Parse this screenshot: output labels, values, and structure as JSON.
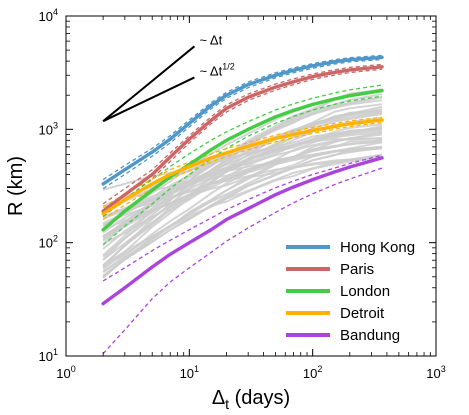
{
  "chart_data": {
    "type": "line",
    "title": "",
    "xlabel": "Δ",
    "xlabel_sub": "t",
    "xlabel_tail": " (days)",
    "ylabel": "R (km)",
    "xscale": "log",
    "yscale": "log",
    "xlim": [
      1,
      1000
    ],
    "ylim": [
      10,
      10000
    ],
    "legend_placement": "bottom-right",
    "grid": false,
    "x_ticks": [
      {
        "base": "10",
        "exp": "0"
      },
      {
        "base": "10",
        "exp": "1"
      },
      {
        "base": "10",
        "exp": "2"
      },
      {
        "base": "10",
        "exp": "3"
      }
    ],
    "y_ticks": [
      {
        "base": "10",
        "exp": "1"
      },
      {
        "base": "10",
        "exp": "2"
      },
      {
        "base": "10",
        "exp": "3"
      },
      {
        "base": "10",
        "exp": "4"
      }
    ],
    "x": [
      2,
      3,
      5,
      7,
      10,
      15,
      20,
      30,
      50,
      70,
      100,
      150,
      200,
      365
    ],
    "series": [
      {
        "name": "Hong Kong",
        "color": "#4f97c9",
        "values": [
          330,
          440,
          630,
          820,
          1130,
          1620,
          2000,
          2480,
          3000,
          3320,
          3640,
          3940,
          4120,
          4310
        ],
        "band_lower": [
          300,
          400,
          580,
          760,
          1050,
          1520,
          1880,
          2330,
          2850,
          3160,
          3460,
          3760,
          3940,
          4130
        ],
        "band_upper": [
          360,
          480,
          680,
          880,
          1210,
          1720,
          2120,
          2620,
          3160,
          3480,
          3800,
          4110,
          4290,
          4490
        ]
      },
      {
        "name": "Paris",
        "color": "#cc6666",
        "values": [
          190,
          265,
          400,
          570,
          820,
          1200,
          1530,
          1920,
          2360,
          2630,
          2920,
          3180,
          3340,
          3560
        ],
        "band_lower": [
          170,
          240,
          370,
          520,
          760,
          1120,
          1420,
          1800,
          2220,
          2480,
          2760,
          3010,
          3170,
          3390
        ],
        "band_upper": [
          220,
          300,
          440,
          620,
          880,
          1290,
          1640,
          2050,
          2510,
          2790,
          3080,
          3350,
          3520,
          3740
        ]
      },
      {
        "name": "London",
        "color": "#44cc44",
        "values": [
          130,
          190,
          290,
          380,
          490,
          660,
          800,
          1000,
          1290,
          1470,
          1660,
          1850,
          1980,
          2200
        ],
        "band_lower": [
          95,
          140,
          220,
          300,
          400,
          550,
          680,
          870,
          1130,
          1300,
          1480,
          1660,
          1780,
          1960
        ],
        "band_upper": [
          170,
          245,
          360,
          470,
          610,
          800,
          950,
          1170,
          1480,
          1680,
          1880,
          2090,
          2230,
          2460
        ]
      },
      {
        "name": "Detroit",
        "color": "#ffb300",
        "values": [
          180,
          240,
          330,
          400,
          470,
          560,
          620,
          710,
          830,
          900,
          980,
          1060,
          1120,
          1210
        ],
        "band_lower": [
          160,
          215,
          300,
          365,
          430,
          515,
          575,
          660,
          775,
          845,
          920,
          1000,
          1060,
          1150
        ],
        "band_upper": [
          205,
          270,
          365,
          440,
          515,
          610,
          675,
          765,
          890,
          960,
          1040,
          1125,
          1185,
          1280
        ]
      },
      {
        "name": "Bandung",
        "color": "#aa44dd",
        "values": [
          29,
          40,
          61,
          79,
          100,
          130,
          160,
          200,
          265,
          310,
          360,
          420,
          465,
          560
        ],
        "band_lower": [
          10.5,
          17,
          32,
          45,
          60,
          82,
          103,
          135,
          185,
          225,
          270,
          325,
          365,
          455
        ],
        "band_upper": [
          46,
          60,
          85,
          105,
          130,
          165,
          195,
          240,
          305,
          350,
          400,
          455,
          500,
          590
        ]
      }
    ],
    "background_series_count": 40,
    "background_color": "#cccccc",
    "guides": [
      {
        "label": "~ Δt",
        "label_base": "~ Δt",
        "label_sup": "",
        "x": [
          2,
          11
        ],
        "y": [
          1180,
          5400
        ]
      },
      {
        "label": "~ Δt1/2",
        "label_base": "~ Δt",
        "label_sup": "1/2",
        "x": [
          2,
          11
        ],
        "y": [
          1180,
          2870
        ]
      }
    ]
  }
}
